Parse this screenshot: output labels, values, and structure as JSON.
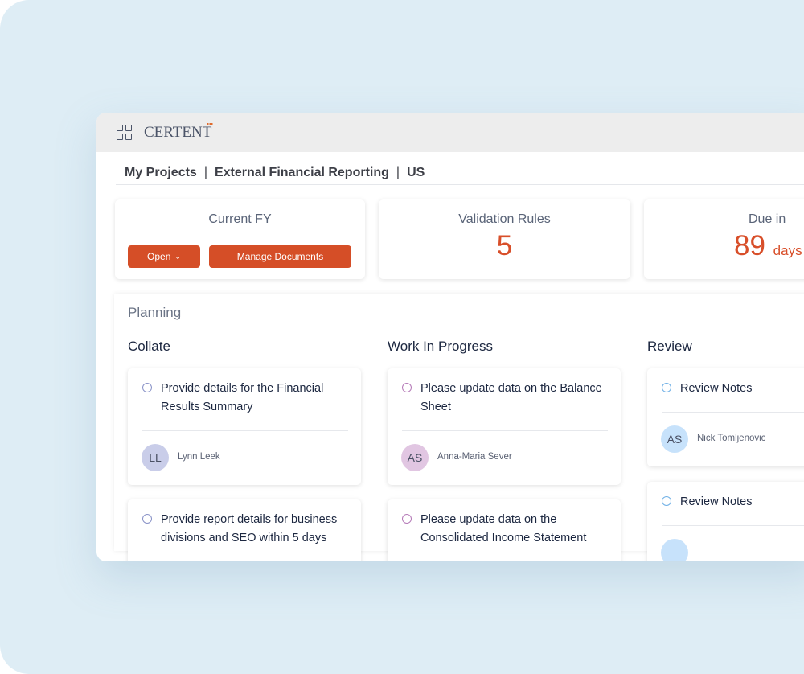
{
  "app": {
    "logo": "CERTENT"
  },
  "breadcrumb": [
    "My Projects",
    "External Financial Reporting",
    "US"
  ],
  "stats": {
    "current_fy": {
      "title": "Current FY",
      "open_label": "Open",
      "manage_label": "Manage Documents"
    },
    "validation": {
      "title": "Validation Rules",
      "value": "5"
    },
    "due": {
      "title": "Due in",
      "value": "89",
      "unit": "days"
    }
  },
  "planning": {
    "title": "Planning",
    "columns": [
      {
        "title": "Collate",
        "radio_color": "#8a93c8",
        "tasks": [
          {
            "text": "Provide details for the Financial Results Summary",
            "initials": "LL",
            "user": "Lynn Leek",
            "avatar_color": "#c9cde9"
          },
          {
            "text": "Provide report details for business divisions and SEO within 5 days"
          }
        ]
      },
      {
        "title": "Work In Progress",
        "radio_color": "#b57ab8",
        "tasks": [
          {
            "text": "Please update data on the Balance Sheet",
            "initials": "AS",
            "user": "Anna-Maria Sever",
            "avatar_color": "#e1c6e2"
          },
          {
            "text": "Please update data on the Consolidated Income Statement"
          }
        ]
      },
      {
        "title": "Review",
        "radio_color": "#6fb0e6",
        "tasks": [
          {
            "text": "Review Notes",
            "initials": "AS",
            "user": "Nick Tomljenovic",
            "avatar_color": "#c7e2fb"
          },
          {
            "text": "Review Notes"
          }
        ]
      }
    ]
  },
  "colors": {
    "accent": "#d54e27",
    "background": "#deedf5"
  }
}
